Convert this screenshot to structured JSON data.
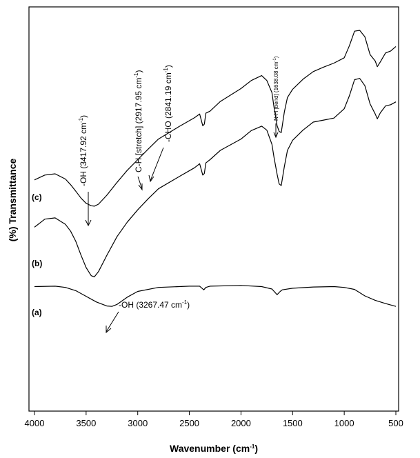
{
  "chart_data": {
    "type": "line",
    "title": "",
    "xlabel": "Wavenumber (cm",
    "xlabel_sup": "-1",
    "xlabel_end": ")",
    "ylabel": "(%) Transmittance",
    "xlim": [
      4000,
      500
    ],
    "x_reversed": true,
    "x_ticks": [
      "4000",
      "3500",
      "3000",
      "2500",
      "2000",
      "1500",
      "1000",
      "500"
    ],
    "x_tick_values": [
      4000,
      3500,
      3000,
      2500,
      2000,
      1500,
      1000,
      500
    ],
    "ylim": [
      0,
      100
    ],
    "y_ticks_shown": false,
    "grid": false,
    "series": [
      {
        "name": "(a)",
        "x": [
          4000,
          3800,
          3700,
          3600,
          3500,
          3400,
          3300,
          3250,
          3200,
          3100,
          3000,
          2800,
          2500,
          2400,
          2360,
          2340,
          2300,
          2000,
          1800,
          1700,
          1650,
          1620,
          1600,
          1500,
          1300,
          1100,
          1000,
          900,
          800,
          700,
          600,
          500
        ],
        "y": [
          30.8,
          30.9,
          30.6,
          29.8,
          28.4,
          27.0,
          26.0,
          25.9,
          26.4,
          28.2,
          29.6,
          30.6,
          30.9,
          30.9,
          30.0,
          30.6,
          30.9,
          31.1,
          30.8,
          30.2,
          28.8,
          29.6,
          30.0,
          30.4,
          30.7,
          30.8,
          30.6,
          30.1,
          28.5,
          27.4,
          26.6,
          25.9
        ]
      },
      {
        "name": "(b)",
        "x": [
          4000,
          3900,
          3800,
          3700,
          3650,
          3600,
          3550,
          3500,
          3450,
          3420,
          3380,
          3300,
          3200,
          3100,
          3000,
          2900,
          2800,
          2600,
          2450,
          2400,
          2370,
          2355,
          2340,
          2300,
          2200,
          2000,
          1900,
          1800,
          1750,
          1700,
          1680,
          1650,
          1630,
          1610,
          1580,
          1550,
          1500,
          1400,
          1300,
          1200,
          1100,
          1000,
          950,
          900,
          850,
          800,
          750,
          700,
          680,
          650,
          600,
          550,
          500
        ],
        "y": [
          45.5,
          47.5,
          47.8,
          46.2,
          44.5,
          42.0,
          38.6,
          35.5,
          33.5,
          33.2,
          34.5,
          38.5,
          43.2,
          46.8,
          49.8,
          52.5,
          55.0,
          58.0,
          60.2,
          61.2,
          58.4,
          58.8,
          61.4,
          62.2,
          64.5,
          67.3,
          69.4,
          70.5,
          69.5,
          66.0,
          62.8,
          58.6,
          56.2,
          55.8,
          60.5,
          64.5,
          67.0,
          69.5,
          71.5,
          72.0,
          72.5,
          74.8,
          78.0,
          82.0,
          82.3,
          80.5,
          76.0,
          73.5,
          72.3,
          73.8,
          75.5,
          75.8,
          76.5
        ]
      },
      {
        "name": "(c)",
        "x": [
          4000,
          3900,
          3800,
          3700,
          3650,
          3600,
          3550,
          3500,
          3450,
          3420,
          3380,
          3300,
          3200,
          3100,
          3000,
          2900,
          2800,
          2600,
          2450,
          2400,
          2370,
          2355,
          2340,
          2300,
          2200,
          2000,
          1900,
          1800,
          1750,
          1700,
          1680,
          1650,
          1630,
          1610,
          1580,
          1550,
          1500,
          1400,
          1300,
          1200,
          1100,
          1000,
          950,
          900,
          850,
          800,
          750,
          700,
          680,
          650,
          600,
          550,
          500
        ],
        "y": [
          57.2,
          58.4,
          58.7,
          57.4,
          56.0,
          54.4,
          52.7,
          51.4,
          50.8,
          50.7,
          51.2,
          53.4,
          56.6,
          59.6,
          62.2,
          64.8,
          67.3,
          70.4,
          72.6,
          73.5,
          70.6,
          71.0,
          73.7,
          74.2,
          76.6,
          79.8,
          81.8,
          83.0,
          81.8,
          78.8,
          75.2,
          70.6,
          69.2,
          68.9,
          74.0,
          77.6,
          79.6,
          82.1,
          84.0,
          85.1,
          86.1,
          87.4,
          90.4,
          94.0,
          94.2,
          92.6,
          88.2,
          86.6,
          85.2,
          86.4,
          88.6,
          89.1,
          90.2
        ]
      }
    ],
    "series_labels": [
      "(a)",
      "(b)",
      "(c)"
    ],
    "annotations": [
      {
        "text": "-OH (3417.92 cm",
        "sup": "-1",
        "end": ")",
        "x": 3418
      },
      {
        "text": "C-H [stretch] (2917.95 cm",
        "sup": "-1",
        "end": ")",
        "x": 2918
      },
      {
        "text": "-CHO (2841.19 cm",
        "sup": "-1",
        "end": ")",
        "x": 2841
      },
      {
        "text": "N-H [bend] (1638.08 cm",
        "sup": "-1",
        "end": ")",
        "x": 1638
      },
      {
        "text": "-OH (3267.47 cm",
        "sup": "-1",
        "end": ")",
        "x": 3267
      }
    ]
  },
  "colors": {
    "line": "#000000",
    "axis": "#000000",
    "background": "#ffffff"
  }
}
